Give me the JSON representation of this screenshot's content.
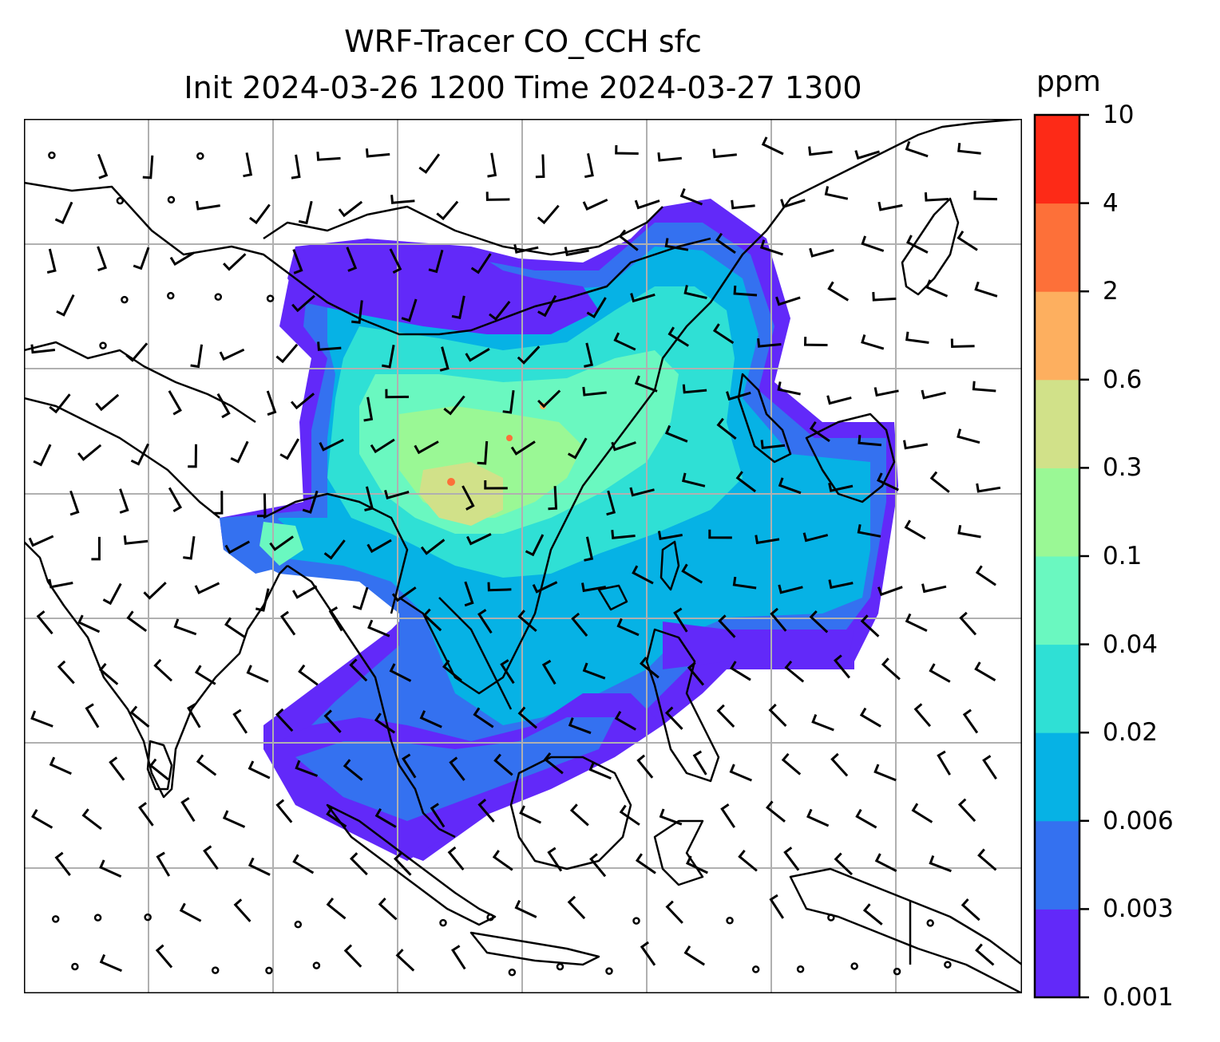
{
  "title": {
    "line1": "WRF-Tracer CO_CCH sfc",
    "line2": "Init 2024-03-26 1200 Time 2024-03-27 1300"
  },
  "colorbar": {
    "unit": "ppm",
    "ticks": [
      "10",
      "4",
      "2",
      "0.6",
      "0.3",
      "0.1",
      "0.04",
      "0.02",
      "0.006",
      "0.003",
      "0.001"
    ],
    "colors_bottom_to_top": [
      "#6229f9",
      "#3471f0",
      "#06b2e5",
      "#2fe0d5",
      "#6af8c0",
      "#9af895",
      "#d1e189",
      "#fdaf5f",
      "#fd7039",
      "#fd2a17"
    ]
  },
  "map": {
    "projection": "lat-lon with gridlines",
    "field": "CO_CCH surface tracer concentration",
    "overlay": "wind barbs",
    "coastline_color": "#000000",
    "grid_color": "#b0b0b0"
  }
}
